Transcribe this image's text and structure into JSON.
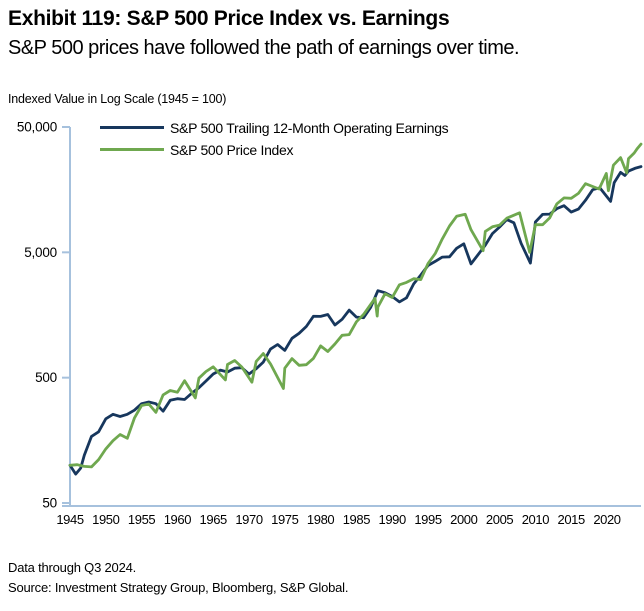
{
  "header": {
    "title": "Exhibit 119: S&P 500 Price Index vs. Earnings",
    "subtitle": "S&P 500 prices have followed the path of earnings over time."
  },
  "chart": {
    "unit_label": "Indexed Value in Log Scale (1945 = 100)",
    "colors": {
      "earnings_line": "#17375D",
      "price_line": "#6FA84F",
      "axis": "#A6C1DD",
      "text": "#000000"
    }
  },
  "chart_data": {
    "type": "line",
    "title": "Exhibit 119: S&P 500 Price Index vs. Earnings",
    "ylabel": "Indexed Value in Log Scale (1945 = 100)",
    "xlabel": "",
    "y_scale": "log",
    "ylim": [
      50,
      50000
    ],
    "xlim": [
      1945,
      2024.75
    ],
    "grid": false,
    "legend_position": "top-left-inside",
    "y_ticks": [
      {
        "value": 50000,
        "label": "50,000"
      },
      {
        "value": 5000,
        "label": "5,000"
      },
      {
        "value": 500,
        "label": "500"
      },
      {
        "value": 50,
        "label": "50"
      }
    ],
    "x_ticks": [
      1945,
      1950,
      1955,
      1960,
      1965,
      1970,
      1975,
      1980,
      1985,
      1990,
      1995,
      2000,
      2005,
      2010,
      2015,
      2020
    ],
    "series": [
      {
        "name": "S&P 500 Trailing 12-Month Operating Earnings",
        "color": "#17375D",
        "points": [
          [
            1945,
            100
          ],
          [
            1945.8,
            85
          ],
          [
            1946.5,
            95
          ],
          [
            1947,
            120
          ],
          [
            1948,
            170
          ],
          [
            1949,
            185
          ],
          [
            1950,
            235
          ],
          [
            1951,
            255
          ],
          [
            1952,
            245
          ],
          [
            1953,
            255
          ],
          [
            1954,
            275
          ],
          [
            1955,
            310
          ],
          [
            1956,
            320
          ],
          [
            1957,
            310
          ],
          [
            1958,
            270
          ],
          [
            1959,
            330
          ],
          [
            1960,
            340
          ],
          [
            1961,
            335
          ],
          [
            1962,
            375
          ],
          [
            1963,
            415
          ],
          [
            1964,
            470
          ],
          [
            1965,
            535
          ],
          [
            1966,
            575
          ],
          [
            1967,
            555
          ],
          [
            1968,
            595
          ],
          [
            1969,
            600
          ],
          [
            1970,
            535
          ],
          [
            1971,
            590
          ],
          [
            1972,
            665
          ],
          [
            1973,
            845
          ],
          [
            1974,
            920
          ],
          [
            1975,
            825
          ],
          [
            1976,
            1030
          ],
          [
            1977,
            1130
          ],
          [
            1978,
            1280
          ],
          [
            1979,
            1545
          ],
          [
            1980,
            1540
          ],
          [
            1981,
            1595
          ],
          [
            1982,
            1315
          ],
          [
            1983,
            1460
          ],
          [
            1984,
            1730
          ],
          [
            1985,
            1520
          ],
          [
            1986,
            1505
          ],
          [
            1987,
            1820
          ],
          [
            1988,
            2470
          ],
          [
            1989,
            2380
          ],
          [
            1990,
            2220
          ],
          [
            1991,
            2010
          ],
          [
            1992,
            2170
          ],
          [
            1993,
            2800
          ],
          [
            1994,
            3300
          ],
          [
            1995,
            3925
          ],
          [
            1996,
            4230
          ],
          [
            1997,
            4580
          ],
          [
            1998,
            4610
          ],
          [
            1999,
            5380
          ],
          [
            2000,
            5845
          ],
          [
            2001,
            4045
          ],
          [
            2002,
            4795
          ],
          [
            2003,
            5695
          ],
          [
            2004,
            7050
          ],
          [
            2005,
            7960
          ],
          [
            2006,
            9140
          ],
          [
            2007,
            8600
          ],
          [
            2008,
            5900
          ],
          [
            2009.3,
            4100
          ],
          [
            2010,
            8725
          ],
          [
            2011,
            10045
          ],
          [
            2012,
            10085
          ],
          [
            2013,
            11175
          ],
          [
            2014,
            11770
          ],
          [
            2015,
            10465
          ],
          [
            2016,
            11070
          ],
          [
            2017,
            13015
          ],
          [
            2018,
            15790
          ],
          [
            2019,
            16365
          ],
          [
            2020.5,
            12745
          ],
          [
            2021,
            18000
          ],
          [
            2021.9,
            21700
          ],
          [
            2022.5,
            20500
          ],
          [
            2023,
            22245
          ],
          [
            2024,
            23500
          ],
          [
            2024.75,
            24170
          ]
        ]
      },
      {
        "name": "S&P 500 Price Index",
        "color": "#6FA84F",
        "points": [
          [
            1945,
            100
          ],
          [
            1946,
            101
          ],
          [
            1947,
            98
          ],
          [
            1948,
            97
          ],
          [
            1949,
            111
          ],
          [
            1950,
            135
          ],
          [
            1951,
            157
          ],
          [
            1952,
            176
          ],
          [
            1953,
            164
          ],
          [
            1954,
            238
          ],
          [
            1955,
            300
          ],
          [
            1956,
            308
          ],
          [
            1957,
            264
          ],
          [
            1958,
            364
          ],
          [
            1959,
            395
          ],
          [
            1960,
            383
          ],
          [
            1961,
            473
          ],
          [
            1962.5,
            345
          ],
          [
            1963,
            495
          ],
          [
            1964,
            560
          ],
          [
            1965,
            610
          ],
          [
            1966.7,
            480
          ],
          [
            1967,
            637
          ],
          [
            1968,
            686
          ],
          [
            1969,
            608
          ],
          [
            1970.4,
            460
          ],
          [
            1971,
            674
          ],
          [
            1972,
            780
          ],
          [
            1973,
            644
          ],
          [
            1974.8,
            410
          ],
          [
            1975,
            595
          ],
          [
            1976,
            710
          ],
          [
            1977,
            628
          ],
          [
            1978,
            634
          ],
          [
            1979,
            712
          ],
          [
            1980,
            896
          ],
          [
            1981,
            809
          ],
          [
            1982,
            928
          ],
          [
            1983,
            1088
          ],
          [
            1984,
            1104
          ],
          [
            1985,
            1395
          ],
          [
            1986,
            1599
          ],
          [
            1987.6,
            2150
          ],
          [
            1987.9,
            1550
          ],
          [
            1988,
            1833
          ],
          [
            1989,
            2332
          ],
          [
            1990,
            2179
          ],
          [
            1991,
            2753
          ],
          [
            1992,
            2876
          ],
          [
            1993,
            3078
          ],
          [
            1994,
            3031
          ],
          [
            1995,
            4065
          ],
          [
            1996,
            4889
          ],
          [
            1997,
            6405
          ],
          [
            1998,
            8113
          ],
          [
            1999,
            9697
          ],
          [
            2000.2,
            10060
          ],
          [
            2001,
            7578
          ],
          [
            2002.7,
            5150
          ],
          [
            2003,
            7339
          ],
          [
            2004,
            7999
          ],
          [
            2005,
            8239
          ],
          [
            2006,
            9361
          ],
          [
            2007.8,
            10330
          ],
          [
            2009.2,
            5000
          ],
          [
            2010,
            8300
          ],
          [
            2011,
            8300
          ],
          [
            2012,
            9413
          ],
          [
            2013,
            12200
          ],
          [
            2014,
            13589
          ],
          [
            2015,
            13490
          ],
          [
            2016,
            14776
          ],
          [
            2017,
            17646
          ],
          [
            2018.9,
            16000
          ],
          [
            2019.9,
            21323
          ],
          [
            2020.2,
            15500
          ],
          [
            2020.9,
            24790
          ],
          [
            2021.9,
            28500
          ],
          [
            2022.75,
            21500
          ],
          [
            2023,
            28000
          ],
          [
            2023.8,
            31000
          ],
          [
            2024.2,
            33500
          ],
          [
            2024.75,
            36500
          ]
        ]
      }
    ]
  },
  "footer": {
    "line1": "Data through Q3 2024.",
    "line2": "Source: Investment Strategy Group, Bloomberg, S&P Global."
  }
}
